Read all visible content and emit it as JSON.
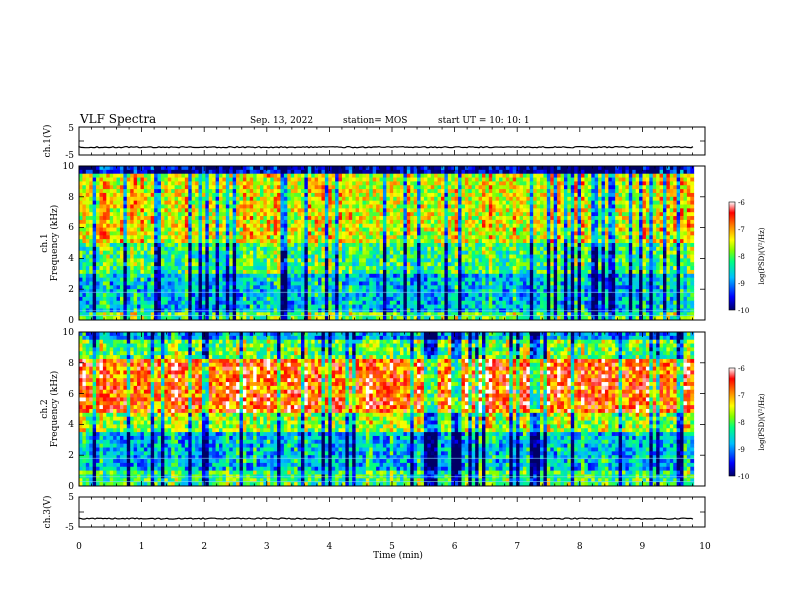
{
  "header": {
    "title": "VLF Spectra",
    "date": "Sep. 13, 2022",
    "station": "station= MOS",
    "start": "start UT =  10: 10: 1"
  },
  "chart_data": [
    {
      "type": "line",
      "name": "ch1-waveform",
      "ylabel": "ch.1(V)",
      "yticks": [
        "5",
        "-5"
      ],
      "ylim": [
        -5,
        5
      ],
      "xlim": [
        0,
        10
      ],
      "level": -2.2
    },
    {
      "type": "heatmap",
      "name": "ch1-spectrogram",
      "ylabel": "ch.1\nFrequency (kHz)",
      "ylabel_line1": "ch.1",
      "ylabel_line2": "Frequency (kHz)",
      "yticks": [
        "0",
        "2",
        "4",
        "6",
        "8",
        "10"
      ],
      "ylim": [
        0,
        10
      ],
      "xlim": [
        0,
        10
      ],
      "data_end_min": 9.82,
      "colorbar": {
        "label": "log(PSD)(V²/Hz)",
        "range": [
          -10,
          -6
        ],
        "ticks": [
          "-6",
          "-7",
          "-8",
          "-9",
          "-10"
        ]
      }
    },
    {
      "type": "heatmap",
      "name": "ch2-spectrogram",
      "ylabel": "ch.2\nFrequency (kHz)",
      "ylabel_line1": "ch.2",
      "ylabel_line2": "Frequency (kHz)",
      "yticks": [
        "0",
        "2",
        "4",
        "6",
        "8",
        "10"
      ],
      "ylim": [
        0,
        10
      ],
      "xlim": [
        0,
        10
      ],
      "data_end_min": 9.82,
      "colorbar": {
        "label": "log(PSD)(V²/Hz)",
        "range": [
          -10,
          -6
        ],
        "ticks": [
          "-6",
          "-7",
          "-8",
          "-9",
          "-10"
        ]
      }
    },
    {
      "type": "line",
      "name": "ch3-waveform",
      "ylabel": "ch.3(V)",
      "yticks": [
        "5",
        "-5"
      ],
      "ylim": [
        -5,
        5
      ],
      "xlim": [
        0,
        10
      ],
      "level": -2.2,
      "xlabel": "Time (min)",
      "xticks": [
        "0",
        "1",
        "2",
        "3",
        "4",
        "5",
        "6",
        "7",
        "8",
        "9",
        "10"
      ]
    }
  ],
  "colors": {
    "scale": [
      "#000066",
      "#0000ff",
      "#00bfff",
      "#00ff80",
      "#80ff00",
      "#ffff00",
      "#ff8000",
      "#ff0000",
      "#ffffff"
    ]
  }
}
